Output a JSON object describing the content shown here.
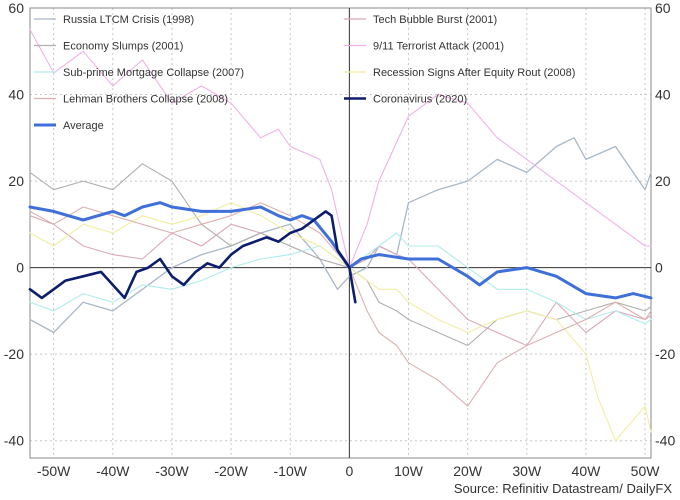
{
  "chart_data": {
    "type": "line",
    "title": "",
    "xlabel": "",
    "ylabel": "",
    "xlim": [
      -54,
      51
    ],
    "ylim": [
      -44,
      60
    ],
    "x_ticks": [
      -50,
      -40,
      -30,
      -20,
      -10,
      0,
      10,
      20,
      30,
      40,
      50
    ],
    "x_tick_labels": [
      "-50W",
      "-40W",
      "-30W",
      "-20W",
      "-10W",
      "0",
      "10W",
      "20W",
      "30W",
      "40W",
      "50W"
    ],
    "y_ticks": [
      60,
      40,
      20,
      0,
      -20,
      -40
    ],
    "y_tick_labels_left": [
      "60",
      "40",
      "20",
      "0",
      "-20",
      "-40"
    ],
    "y_tick_labels_right": [
      "60",
      "40",
      "20",
      "0",
      "-20",
      "-40"
    ],
    "source": "Source: Refinitiv Datastream/ DailyFX",
    "series": [
      {
        "name": "Russia LTCM Crisis (1998)",
        "color": "#a9b8c6",
        "width": 1.3,
        "x": [
          -54,
          -50,
          -45,
          -40,
          -35,
          -30,
          -25,
          -20,
          -15,
          -10,
          -5,
          -2,
          0,
          3,
          5,
          8,
          10,
          15,
          20,
          25,
          30,
          35,
          38,
          40,
          45,
          50,
          51
        ],
        "y": [
          -12,
          -15,
          -8,
          -10,
          -5,
          0,
          3,
          5,
          8,
          10,
          2,
          -5,
          -2,
          0,
          5,
          3,
          15,
          18,
          20,
          25,
          22,
          28,
          30,
          25,
          28,
          18,
          22
        ]
      },
      {
        "name": "Tech Bubble Burst (2001)",
        "color": "#dba8bc",
        "width": 1.1,
        "x": [
          -54,
          -50,
          -45,
          -40,
          -35,
          -30,
          -25,
          -20,
          -15,
          -10,
          -5,
          0,
          3,
          5,
          8,
          10,
          15,
          20,
          25,
          30,
          35,
          40,
          45,
          50,
          51
        ],
        "y": [
          12,
          10,
          5,
          3,
          2,
          8,
          5,
          10,
          8,
          5,
          2,
          0,
          2,
          5,
          3,
          2,
          -5,
          -12,
          -15,
          -18,
          -8,
          -15,
          -10,
          -12,
          -11
        ]
      },
      {
        "name": "Economy Slumps (2001)",
        "color": "#b0b0b0",
        "width": 1.1,
        "x": [
          -54,
          -50,
          -45,
          -40,
          -35,
          -30,
          -25,
          -20,
          -15,
          -10,
          -5,
          0,
          3,
          5,
          8,
          10,
          15,
          20,
          25,
          30,
          35,
          40,
          45,
          50,
          51
        ],
        "y": [
          22,
          18,
          20,
          18,
          24,
          20,
          10,
          5,
          8,
          5,
          2,
          0,
          -3,
          -8,
          -10,
          -12,
          -15,
          -18,
          -12,
          -10,
          -12,
          -10,
          -8,
          -10,
          -9
        ]
      },
      {
        "name": "9/11 Terrorist Attack (2001)",
        "color": "#f0b2e6",
        "width": 1.1,
        "x": [
          -54,
          -50,
          -45,
          -40,
          -35,
          -30,
          -25,
          -20,
          -15,
          -12,
          -10,
          -5,
          -3,
          0,
          3,
          5,
          10,
          15,
          20,
          25,
          30,
          35,
          40,
          45,
          50,
          51
        ],
        "y": [
          55,
          45,
          50,
          42,
          48,
          38,
          42,
          38,
          30,
          32,
          28,
          25,
          18,
          0,
          10,
          20,
          35,
          40,
          38,
          30,
          25,
          20,
          15,
          10,
          5,
          5
        ]
      },
      {
        "name": "Sub-prime Mortgage Collapse (2007)",
        "color": "#b0ecec",
        "width": 1.1,
        "x": [
          -54,
          -50,
          -45,
          -40,
          -35,
          -30,
          -25,
          -20,
          -15,
          -10,
          -5,
          0,
          3,
          5,
          8,
          10,
          15,
          20,
          25,
          30,
          35,
          40,
          45,
          50,
          51
        ],
        "y": [
          -8,
          -10,
          -6,
          -8,
          -4,
          -5,
          -3,
          0,
          2,
          3,
          5,
          0,
          3,
          5,
          8,
          5,
          5,
          0,
          -5,
          -5,
          -8,
          -12,
          -10,
          -13,
          -12
        ]
      },
      {
        "name": "Recession Signs After Equity Rout (2008)",
        "color": "#f2eea0",
        "width": 1.1,
        "x": [
          -54,
          -50,
          -45,
          -40,
          -35,
          -30,
          -25,
          -20,
          -15,
          -10,
          -5,
          0,
          3,
          5,
          8,
          10,
          15,
          20,
          25,
          30,
          35,
          40,
          42,
          45,
          50,
          51
        ],
        "y": [
          8,
          5,
          10,
          8,
          12,
          10,
          12,
          15,
          12,
          8,
          5,
          0,
          -3,
          -5,
          -5,
          -8,
          -12,
          -15,
          -12,
          -10,
          -12,
          -20,
          -30,
          -40,
          -32,
          -38
        ]
      },
      {
        "name": "Lehman Brothers Collapse (2008)",
        "color": "#ddb0b0",
        "width": 1.1,
        "x": [
          -54,
          -50,
          -45,
          -40,
          -35,
          -30,
          -25,
          -20,
          -15,
          -10,
          -5,
          0,
          3,
          5,
          8,
          10,
          15,
          20,
          22,
          25,
          30,
          35,
          40,
          45,
          50,
          51
        ],
        "y": [
          13,
          10,
          14,
          12,
          10,
          8,
          10,
          12,
          15,
          12,
          8,
          0,
          -10,
          -15,
          -18,
          -22,
          -26,
          -32,
          -28,
          -22,
          -18,
          -15,
          -12,
          -8,
          -12,
          -10
        ]
      },
      {
        "name": "Average",
        "color": "#3f6fd8",
        "width": 3,
        "x": [
          -54,
          -50,
          -45,
          -40,
          -38,
          -35,
          -32,
          -30,
          -25,
          -20,
          -15,
          -12,
          -10,
          -8,
          -6,
          -3,
          -1,
          0,
          2,
          5,
          10,
          15,
          20,
          22,
          25,
          30,
          35,
          40,
          45,
          48,
          51
        ],
        "y": [
          14,
          13,
          11,
          13,
          12,
          14,
          15,
          14,
          13,
          13,
          14,
          12,
          11,
          12,
          11,
          6,
          2,
          0,
          2,
          3,
          2,
          2,
          -2,
          -4,
          -1,
          0,
          -2,
          -6,
          -7,
          -6,
          -7
        ]
      },
      {
        "name": "Coronavirus (2020)",
        "color": "#0d1d6e",
        "width": 2.6,
        "x": [
          -54,
          -52,
          -50,
          -48,
          -45,
          -42,
          -40,
          -38,
          -36,
          -34,
          -32,
          -30,
          -28,
          -26,
          -24,
          -22,
          -20,
          -18,
          -16,
          -14,
          -12,
          -10,
          -8,
          -6,
          -5,
          -4,
          -3,
          -2,
          -1,
          0,
          1
        ],
        "y": [
          -5,
          -7,
          -5,
          -3,
          -2,
          -1,
          -4,
          -7,
          -1,
          0,
          2,
          -2,
          -4,
          -1,
          1,
          0,
          3,
          5,
          6,
          7,
          6,
          8,
          9,
          11,
          12,
          13,
          12,
          4,
          2,
          0,
          -8
        ]
      }
    ],
    "legend": [
      {
        "label": "Russia LTCM Crisis (1998)",
        "ref": 0,
        "column": "left"
      },
      {
        "label": "Economy Slumps (2001)",
        "ref": 2,
        "column": "left"
      },
      {
        "label": "Sub-prime Mortgage Collapse (2007)",
        "ref": 4,
        "column": "left"
      },
      {
        "label": "Lehman Brothers Collapse (2008)",
        "ref": 6,
        "column": "left"
      },
      {
        "label": "Average",
        "ref": 7,
        "column": "left"
      },
      {
        "label": "Tech Bubble Burst (2001)",
        "ref": 1,
        "column": "right"
      },
      {
        "label": "9/11 Terrorist Attack (2001)",
        "ref": 3,
        "column": "right"
      },
      {
        "label": "Recession Signs After Equity Rout (2008)",
        "ref": 5,
        "column": "right"
      },
      {
        "label": "Coronavirus (2020)",
        "ref": 8,
        "column": "right"
      }
    ]
  }
}
